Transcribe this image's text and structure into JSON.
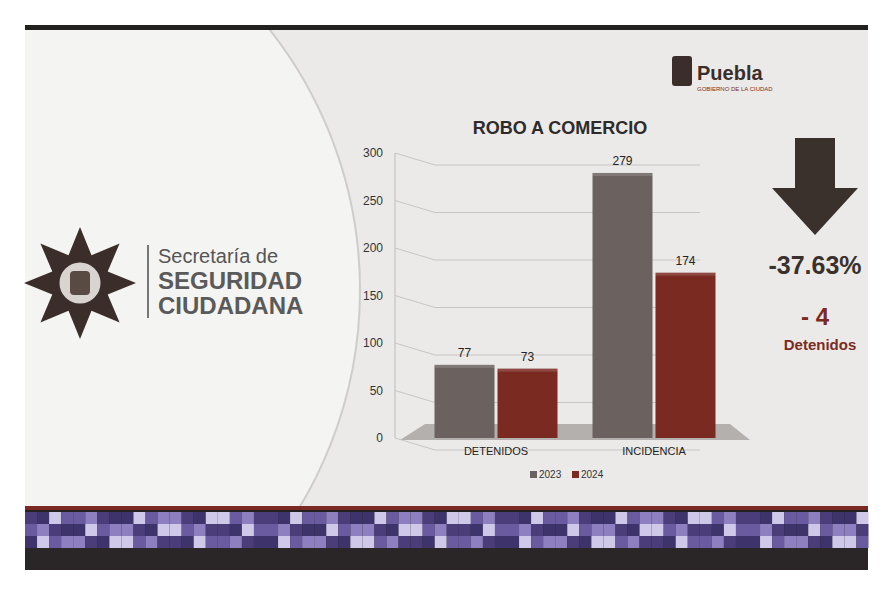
{
  "header": {
    "agency_line1": "Secretaría de",
    "agency_line2": "SEGURIDAD",
    "agency_line3": "CIUDADANA",
    "city": "Puebla",
    "city_sub": "GOBIERNO DE LA CIUDAD"
  },
  "chart_data": {
    "type": "bar",
    "title": "ROBO A COMERCIO",
    "categories": [
      "DETENIDOS",
      "INCIDENCIA"
    ],
    "series": [
      {
        "name": "2023",
        "color": "#6b6260",
        "values": [
          77,
          279
        ]
      },
      {
        "name": "2024",
        "color": "#7b2a22",
        "values": [
          73,
          174
        ]
      }
    ],
    "ylim": [
      0,
      300
    ],
    "yticks": [
      0,
      50,
      100,
      150,
      200,
      250,
      300
    ],
    "grid": true,
    "data_labels": true,
    "legend": "bottom"
  },
  "annotations": {
    "change": "-37.63%",
    "detained_change": "- 4",
    "detained_label": "Detenidos"
  }
}
